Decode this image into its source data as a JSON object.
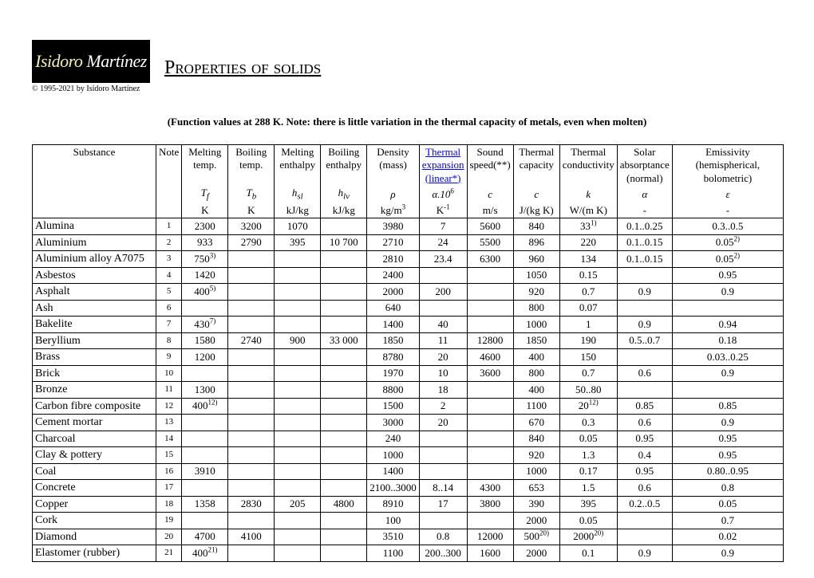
{
  "header": {
    "logo_name1": "Isidoro",
    "logo_name2": "Martínez",
    "copyright": "© 1995-2021 by Isidoro Martínez",
    "title": "Properties of solids",
    "subtitle": "(Function values at 288 K. Note: there is little variation in the thermal capacity of metals, even when molten)"
  },
  "columns": {
    "h0": "Substance",
    "h1": "Note",
    "h2": "Melting temp.",
    "h3": "Boiling temp.",
    "h4": "Melting enthalpy",
    "h5": "Boiling enthalpy",
    "h6": "Density (mass)",
    "h7a": "Thermal",
    "h7b": "expansion",
    "h7c": "(linear*)",
    "h8": "Sound speed(**)",
    "h9": "Thermal capacity",
    "h10": "Thermal conductivity",
    "h11": "Solar absorptance (normal)",
    "h12": "Emissivity (hemispherical, bolometric)",
    "s2": "T",
    "s2sub": "f",
    "s3": "T",
    "s3sub": "b",
    "s4": "h",
    "s4sub": "sl",
    "s5": "h",
    "s5sub": "lv",
    "s6": "ρ",
    "s7": "α.10",
    "s7sup": "6",
    "s8": "c",
    "s9": "c",
    "s10": "k",
    "s11": "α",
    "s12": "ε",
    "u2": "K",
    "u3": "K",
    "u4": "kJ/kg",
    "u5": "kJ/kg",
    "u6": "kg/m",
    "u6sup": "3",
    "u7": "K",
    "u7sup": "-1",
    "u8": "m/s",
    "u9": "J/(kg K)",
    "u10": "W/(m K)",
    "u11": "-",
    "u12": "-"
  },
  "rows": [
    {
      "s": "Alumina",
      "n": "1",
      "c2": "2300",
      "c3": "3200",
      "c4": "1070",
      "c5": "",
      "c6": "3980",
      "c7": "7",
      "c8": "5600",
      "c9": "840",
      "c10": "33",
      "c10s": "1)",
      "c11": "0.1..0.25",
      "c12": "0.3..0.5"
    },
    {
      "s": "Aluminium",
      "n": "2",
      "c2": "933",
      "c3": "2790",
      "c4": "395",
      "c5": "10 700",
      "c6": "2710",
      "c7": "24",
      "c8": "5500",
      "c9": "896",
      "c10": "220",
      "c11": "0.1..0.15",
      "c12": "0.05",
      "c12s": "2)"
    },
    {
      "s": "Aluminium alloy A7075",
      "n": "3",
      "c2": "750",
      "c2s": "3)",
      "c3": "",
      "c4": "",
      "c5": "",
      "c6": "2810",
      "c7": "23.4",
      "c8": "6300",
      "c9": "960",
      "c10": "134",
      "c11": "0.1..0.15",
      "c12": "0.05",
      "c12s": "2)"
    },
    {
      "s": "Asbestos",
      "n": "4",
      "c2": "1420",
      "c3": "",
      "c4": "",
      "c5": "",
      "c6": "2400",
      "c7": "",
      "c8": "",
      "c9": "1050",
      "c10": "0.15",
      "c11": "",
      "c12": "0.95"
    },
    {
      "s": "Asphalt",
      "n": "5",
      "c2": "400",
      "c2s": "5)",
      "c3": "",
      "c4": "",
      "c5": "",
      "c6": "2000",
      "c7": "200",
      "c8": "",
      "c9": "920",
      "c10": "0.7",
      "c11": "0.9",
      "c12": "0.9"
    },
    {
      "s": "Ash",
      "n": "6",
      "c2": "",
      "c3": "",
      "c4": "",
      "c5": "",
      "c6": "640",
      "c7": "",
      "c8": "",
      "c9": "800",
      "c10": "0.07",
      "c11": "",
      "c12": ""
    },
    {
      "s": "Bakelite",
      "n": "7",
      "c2": "430",
      "c2s": "7)",
      "c3": "",
      "c4": "",
      "c5": "",
      "c6": "1400",
      "c7": "40",
      "c8": "",
      "c9": "1000",
      "c10": "1",
      "c11": "0.9",
      "c12": "0.94"
    },
    {
      "s": "Beryllium",
      "n": "8",
      "c2": "1580",
      "c3": "2740",
      "c4": "900",
      "c5": "33 000",
      "c6": "1850",
      "c7": "11",
      "c8": "12800",
      "c9": "1850",
      "c10": "190",
      "c11": "0.5..0.7",
      "c12": "0.18"
    },
    {
      "s": "Brass",
      "n": "9",
      "c2": "1200",
      "c3": "",
      "c4": "",
      "c5": "",
      "c6": "8780",
      "c7": "20",
      "c8": "4600",
      "c9": "400",
      "c10": "150",
      "c11": "",
      "c12": "0.03..0.25"
    },
    {
      "s": "Brick",
      "n": "10",
      "c2": "",
      "c3": "",
      "c4": "",
      "c5": "",
      "c6": "1970",
      "c7": "10",
      "c8": "3600",
      "c9": "800",
      "c10": "0.7",
      "c11": "0.6",
      "c12": "0.9"
    },
    {
      "s": "Bronze",
      "n": "11",
      "c2": "1300",
      "c3": "",
      "c4": "",
      "c5": "",
      "c6": "8800",
      "c7": "18",
      "c8": "",
      "c9": "400",
      "c10": "50..80",
      "c11": "",
      "c12": ""
    },
    {
      "s": "Carbon fibre composite",
      "n": "12",
      "c2": "400",
      "c2s": "12)",
      "c3": "",
      "c4": "",
      "c5": "",
      "c6": "1500",
      "c7": "2",
      "c8": "",
      "c9": "1100",
      "c10": "20",
      "c10s": "12)",
      "c11": "0.85",
      "c12": "0.85"
    },
    {
      "s": "Cement mortar",
      "n": "13",
      "c2": "",
      "c3": "",
      "c4": "",
      "c5": "",
      "c6": "3000",
      "c7": "20",
      "c8": "",
      "c9": "670",
      "c10": "0.3",
      "c11": "0.6",
      "c12": "0.9"
    },
    {
      "s": "Charcoal",
      "n": "14",
      "c2": "",
      "c3": "",
      "c4": "",
      "c5": "",
      "c6": "240",
      "c7": "",
      "c8": "",
      "c9": "840",
      "c10": "0.05",
      "c11": "0.95",
      "c12": "0.95"
    },
    {
      "s": "Clay & pottery",
      "n": "15",
      "c2": "",
      "c3": "",
      "c4": "",
      "c5": "",
      "c6": "1000",
      "c7": "",
      "c8": "",
      "c9": "920",
      "c10": "1.3",
      "c11": "0.4",
      "c12": "0.95"
    },
    {
      "s": "Coal",
      "n": "16",
      "c2": "3910",
      "c3": "",
      "c4": "",
      "c5": "",
      "c6": "1400",
      "c7": "",
      "c8": "",
      "c9": "1000",
      "c10": "0.17",
      "c11": "0.95",
      "c12": "0.80..0.95"
    },
    {
      "s": "Concrete",
      "n": "17",
      "c2": "",
      "c3": "",
      "c4": "",
      "c5": "",
      "c6": "2100..3000",
      "c7": "8..14",
      "c8": "4300",
      "c9": "653",
      "c10": "1.5",
      "c11": "0.6",
      "c12": "0.8"
    },
    {
      "s": "Copper",
      "n": "18",
      "c2": "1358",
      "c3": "2830",
      "c4": "205",
      "c5": "4800",
      "c6": "8910",
      "c7": "17",
      "c8": "3800",
      "c9": "390",
      "c10": "395",
      "c11": "0.2..0.5",
      "c12": "0.05"
    },
    {
      "s": "Cork",
      "n": "19",
      "c2": "",
      "c3": "",
      "c4": "",
      "c5": "",
      "c6": "100",
      "c7": "",
      "c8": "",
      "c9": "2000",
      "c10": "0.05",
      "c11": "",
      "c12": "0.7"
    },
    {
      "s": "Diamond",
      "n": "20",
      "c2": "4700",
      "c3": "4100",
      "c4": "",
      "c5": "",
      "c6": "3510",
      "c7": "0.8",
      "c8": "12000",
      "c9": "500",
      "c9s": "20)",
      "c10": "2000",
      "c10s": "20)",
      "c11": "",
      "c12": "0.02"
    },
    {
      "s": "Elastomer (rubber)",
      "n": "21",
      "c2": "400",
      "c2s": "21)",
      "c3": "",
      "c4": "",
      "c5": "",
      "c6": "1100",
      "c7": "200..300",
      "c8": "1600",
      "c9": "2000",
      "c10": "0.1",
      "c11": "0.9",
      "c12": "0.9"
    }
  ]
}
